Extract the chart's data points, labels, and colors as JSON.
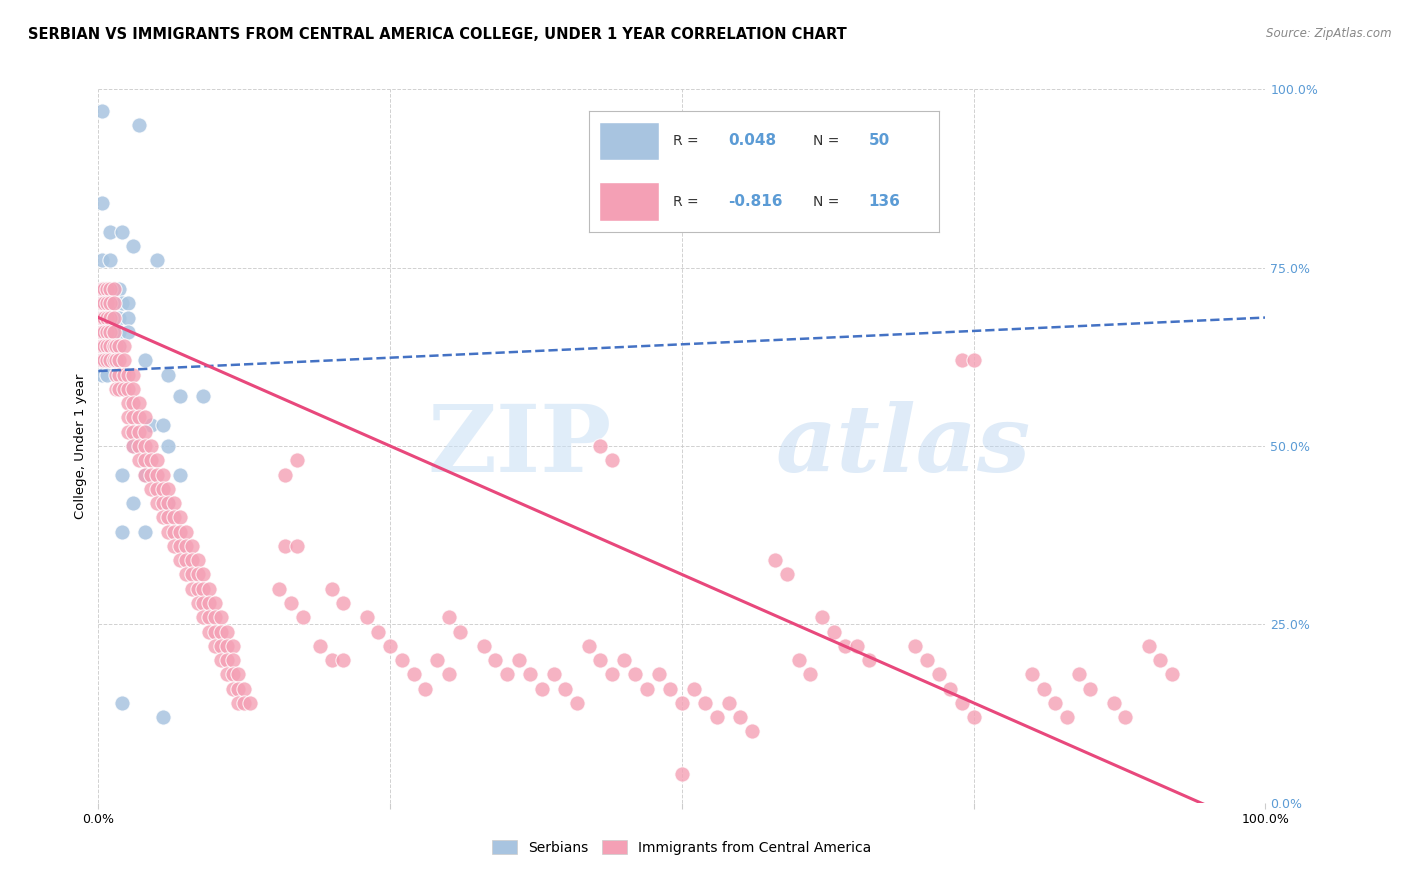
{
  "title": "SERBIAN VS IMMIGRANTS FROM CENTRAL AMERICA COLLEGE, UNDER 1 YEAR CORRELATION CHART",
  "source": "Source: ZipAtlas.com",
  "ylabel": "College, Under 1 year",
  "xlim": [
    0.0,
    1.0
  ],
  "ylim": [
    0.0,
    1.0
  ],
  "y_tick_values": [
    0.0,
    0.25,
    0.5,
    0.75,
    1.0
  ],
  "watermark_zip": "ZIP",
  "watermark_atlas": "atlas",
  "serbian_color": "#a8c4e0",
  "immigrant_color": "#f4a0b5",
  "serbian_line_color": "#4472c4",
  "immigrant_line_color": "#e8487c",
  "right_tick_color": "#5b9bd5",
  "background_color": "#ffffff",
  "grid_color": "#cccccc",
  "serbian_intercept": 0.605,
  "serbian_slope": 0.075,
  "immigrant_intercept": 0.68,
  "immigrant_slope": -0.72,
  "serbian_points": [
    [
      0.003,
      0.97
    ],
    [
      0.035,
      0.95
    ],
    [
      0.003,
      0.84
    ],
    [
      0.01,
      0.8
    ],
    [
      0.02,
      0.8
    ],
    [
      0.03,
      0.78
    ],
    [
      0.003,
      0.76
    ],
    [
      0.01,
      0.76
    ],
    [
      0.05,
      0.76
    ],
    [
      0.003,
      0.72
    ],
    [
      0.007,
      0.72
    ],
    [
      0.013,
      0.72
    ],
    [
      0.018,
      0.72
    ],
    [
      0.003,
      0.7
    ],
    [
      0.007,
      0.7
    ],
    [
      0.012,
      0.7
    ],
    [
      0.02,
      0.7
    ],
    [
      0.025,
      0.7
    ],
    [
      0.003,
      0.68
    ],
    [
      0.007,
      0.68
    ],
    [
      0.012,
      0.68
    ],
    [
      0.018,
      0.68
    ],
    [
      0.025,
      0.68
    ],
    [
      0.003,
      0.66
    ],
    [
      0.007,
      0.66
    ],
    [
      0.012,
      0.66
    ],
    [
      0.018,
      0.66
    ],
    [
      0.025,
      0.66
    ],
    [
      0.003,
      0.64
    ],
    [
      0.007,
      0.64
    ],
    [
      0.012,
      0.64
    ],
    [
      0.018,
      0.64
    ],
    [
      0.003,
      0.62
    ],
    [
      0.007,
      0.62
    ],
    [
      0.012,
      0.62
    ],
    [
      0.003,
      0.6
    ],
    [
      0.007,
      0.6
    ],
    [
      0.04,
      0.62
    ],
    [
      0.06,
      0.6
    ],
    [
      0.07,
      0.57
    ],
    [
      0.09,
      0.57
    ],
    [
      0.045,
      0.53
    ],
    [
      0.055,
      0.53
    ],
    [
      0.03,
      0.5
    ],
    [
      0.06,
      0.5
    ],
    [
      0.02,
      0.46
    ],
    [
      0.04,
      0.46
    ],
    [
      0.07,
      0.46
    ],
    [
      0.03,
      0.42
    ],
    [
      0.06,
      0.42
    ],
    [
      0.02,
      0.38
    ],
    [
      0.04,
      0.38
    ],
    [
      0.02,
      0.14
    ],
    [
      0.055,
      0.12
    ]
  ],
  "immigrant_points": [
    [
      0.003,
      0.72
    ],
    [
      0.005,
      0.72
    ],
    [
      0.007,
      0.72
    ],
    [
      0.01,
      0.72
    ],
    [
      0.013,
      0.72
    ],
    [
      0.003,
      0.7
    ],
    [
      0.005,
      0.7
    ],
    [
      0.007,
      0.7
    ],
    [
      0.01,
      0.7
    ],
    [
      0.013,
      0.7
    ],
    [
      0.003,
      0.68
    ],
    [
      0.005,
      0.68
    ],
    [
      0.007,
      0.68
    ],
    [
      0.01,
      0.68
    ],
    [
      0.013,
      0.68
    ],
    [
      0.003,
      0.66
    ],
    [
      0.005,
      0.66
    ],
    [
      0.007,
      0.66
    ],
    [
      0.01,
      0.66
    ],
    [
      0.013,
      0.66
    ],
    [
      0.003,
      0.64
    ],
    [
      0.005,
      0.64
    ],
    [
      0.007,
      0.64
    ],
    [
      0.01,
      0.64
    ],
    [
      0.013,
      0.64
    ],
    [
      0.003,
      0.62
    ],
    [
      0.005,
      0.62
    ],
    [
      0.007,
      0.62
    ],
    [
      0.01,
      0.62
    ],
    [
      0.013,
      0.62
    ],
    [
      0.015,
      0.64
    ],
    [
      0.018,
      0.64
    ],
    [
      0.022,
      0.64
    ],
    [
      0.015,
      0.62
    ],
    [
      0.018,
      0.62
    ],
    [
      0.022,
      0.62
    ],
    [
      0.015,
      0.6
    ],
    [
      0.018,
      0.6
    ],
    [
      0.022,
      0.6
    ],
    [
      0.015,
      0.58
    ],
    [
      0.018,
      0.58
    ],
    [
      0.022,
      0.58
    ],
    [
      0.025,
      0.6
    ],
    [
      0.03,
      0.6
    ],
    [
      0.025,
      0.58
    ],
    [
      0.03,
      0.58
    ],
    [
      0.025,
      0.56
    ],
    [
      0.03,
      0.56
    ],
    [
      0.035,
      0.56
    ],
    [
      0.025,
      0.54
    ],
    [
      0.03,
      0.54
    ],
    [
      0.035,
      0.54
    ],
    [
      0.04,
      0.54
    ],
    [
      0.025,
      0.52
    ],
    [
      0.03,
      0.52
    ],
    [
      0.035,
      0.52
    ],
    [
      0.04,
      0.52
    ],
    [
      0.03,
      0.5
    ],
    [
      0.035,
      0.5
    ],
    [
      0.04,
      0.5
    ],
    [
      0.045,
      0.5
    ],
    [
      0.035,
      0.48
    ],
    [
      0.04,
      0.48
    ],
    [
      0.045,
      0.48
    ],
    [
      0.05,
      0.48
    ],
    [
      0.04,
      0.46
    ],
    [
      0.045,
      0.46
    ],
    [
      0.05,
      0.46
    ],
    [
      0.055,
      0.46
    ],
    [
      0.045,
      0.44
    ],
    [
      0.05,
      0.44
    ],
    [
      0.055,
      0.44
    ],
    [
      0.06,
      0.44
    ],
    [
      0.05,
      0.42
    ],
    [
      0.055,
      0.42
    ],
    [
      0.06,
      0.42
    ],
    [
      0.065,
      0.42
    ],
    [
      0.055,
      0.4
    ],
    [
      0.06,
      0.4
    ],
    [
      0.065,
      0.4
    ],
    [
      0.07,
      0.4
    ],
    [
      0.06,
      0.38
    ],
    [
      0.065,
      0.38
    ],
    [
      0.07,
      0.38
    ],
    [
      0.075,
      0.38
    ],
    [
      0.065,
      0.36
    ],
    [
      0.07,
      0.36
    ],
    [
      0.075,
      0.36
    ],
    [
      0.08,
      0.36
    ],
    [
      0.07,
      0.34
    ],
    [
      0.075,
      0.34
    ],
    [
      0.08,
      0.34
    ],
    [
      0.085,
      0.34
    ],
    [
      0.075,
      0.32
    ],
    [
      0.08,
      0.32
    ],
    [
      0.085,
      0.32
    ],
    [
      0.09,
      0.32
    ],
    [
      0.08,
      0.3
    ],
    [
      0.085,
      0.3
    ],
    [
      0.09,
      0.3
    ],
    [
      0.095,
      0.3
    ],
    [
      0.085,
      0.28
    ],
    [
      0.09,
      0.28
    ],
    [
      0.095,
      0.28
    ],
    [
      0.1,
      0.28
    ],
    [
      0.09,
      0.26
    ],
    [
      0.095,
      0.26
    ],
    [
      0.1,
      0.26
    ],
    [
      0.105,
      0.26
    ],
    [
      0.095,
      0.24
    ],
    [
      0.1,
      0.24
    ],
    [
      0.105,
      0.24
    ],
    [
      0.11,
      0.24
    ],
    [
      0.1,
      0.22
    ],
    [
      0.105,
      0.22
    ],
    [
      0.11,
      0.22
    ],
    [
      0.115,
      0.22
    ],
    [
      0.105,
      0.2
    ],
    [
      0.11,
      0.2
    ],
    [
      0.115,
      0.2
    ],
    [
      0.11,
      0.18
    ],
    [
      0.115,
      0.18
    ],
    [
      0.12,
      0.18
    ],
    [
      0.115,
      0.16
    ],
    [
      0.12,
      0.16
    ],
    [
      0.125,
      0.16
    ],
    [
      0.12,
      0.14
    ],
    [
      0.125,
      0.14
    ],
    [
      0.13,
      0.14
    ],
    [
      0.16,
      0.46
    ],
    [
      0.17,
      0.48
    ],
    [
      0.16,
      0.36
    ],
    [
      0.17,
      0.36
    ],
    [
      0.155,
      0.3
    ],
    [
      0.165,
      0.28
    ],
    [
      0.175,
      0.26
    ],
    [
      0.2,
      0.3
    ],
    [
      0.21,
      0.28
    ],
    [
      0.19,
      0.22
    ],
    [
      0.2,
      0.2
    ],
    [
      0.21,
      0.2
    ],
    [
      0.23,
      0.26
    ],
    [
      0.24,
      0.24
    ],
    [
      0.25,
      0.22
    ],
    [
      0.26,
      0.2
    ],
    [
      0.27,
      0.18
    ],
    [
      0.28,
      0.16
    ],
    [
      0.3,
      0.26
    ],
    [
      0.31,
      0.24
    ],
    [
      0.29,
      0.2
    ],
    [
      0.3,
      0.18
    ],
    [
      0.33,
      0.22
    ],
    [
      0.34,
      0.2
    ],
    [
      0.35,
      0.18
    ],
    [
      0.36,
      0.2
    ],
    [
      0.37,
      0.18
    ],
    [
      0.38,
      0.16
    ],
    [
      0.39,
      0.18
    ],
    [
      0.4,
      0.16
    ],
    [
      0.41,
      0.14
    ],
    [
      0.42,
      0.22
    ],
    [
      0.43,
      0.2
    ],
    [
      0.44,
      0.18
    ],
    [
      0.45,
      0.2
    ],
    [
      0.46,
      0.18
    ],
    [
      0.47,
      0.16
    ],
    [
      0.48,
      0.18
    ],
    [
      0.49,
      0.16
    ],
    [
      0.5,
      0.14
    ],
    [
      0.51,
      0.16
    ],
    [
      0.52,
      0.14
    ],
    [
      0.53,
      0.12
    ],
    [
      0.54,
      0.14
    ],
    [
      0.55,
      0.12
    ],
    [
      0.56,
      0.1
    ],
    [
      0.43,
      0.5
    ],
    [
      0.44,
      0.48
    ],
    [
      0.5,
      0.04
    ],
    [
      0.58,
      0.34
    ],
    [
      0.59,
      0.32
    ],
    [
      0.6,
      0.2
    ],
    [
      0.61,
      0.18
    ],
    [
      0.62,
      0.26
    ],
    [
      0.63,
      0.24
    ],
    [
      0.64,
      0.22
    ],
    [
      0.65,
      0.22
    ],
    [
      0.66,
      0.2
    ],
    [
      0.7,
      0.22
    ],
    [
      0.71,
      0.2
    ],
    [
      0.72,
      0.18
    ],
    [
      0.73,
      0.16
    ],
    [
      0.74,
      0.14
    ],
    [
      0.75,
      0.12
    ],
    [
      0.74,
      0.62
    ],
    [
      0.75,
      0.62
    ],
    [
      0.8,
      0.18
    ],
    [
      0.81,
      0.16
    ],
    [
      0.82,
      0.14
    ],
    [
      0.83,
      0.12
    ],
    [
      0.84,
      0.18
    ],
    [
      0.85,
      0.16
    ],
    [
      0.87,
      0.14
    ],
    [
      0.88,
      0.12
    ],
    [
      0.9,
      0.22
    ],
    [
      0.91,
      0.2
    ],
    [
      0.92,
      0.18
    ]
  ]
}
